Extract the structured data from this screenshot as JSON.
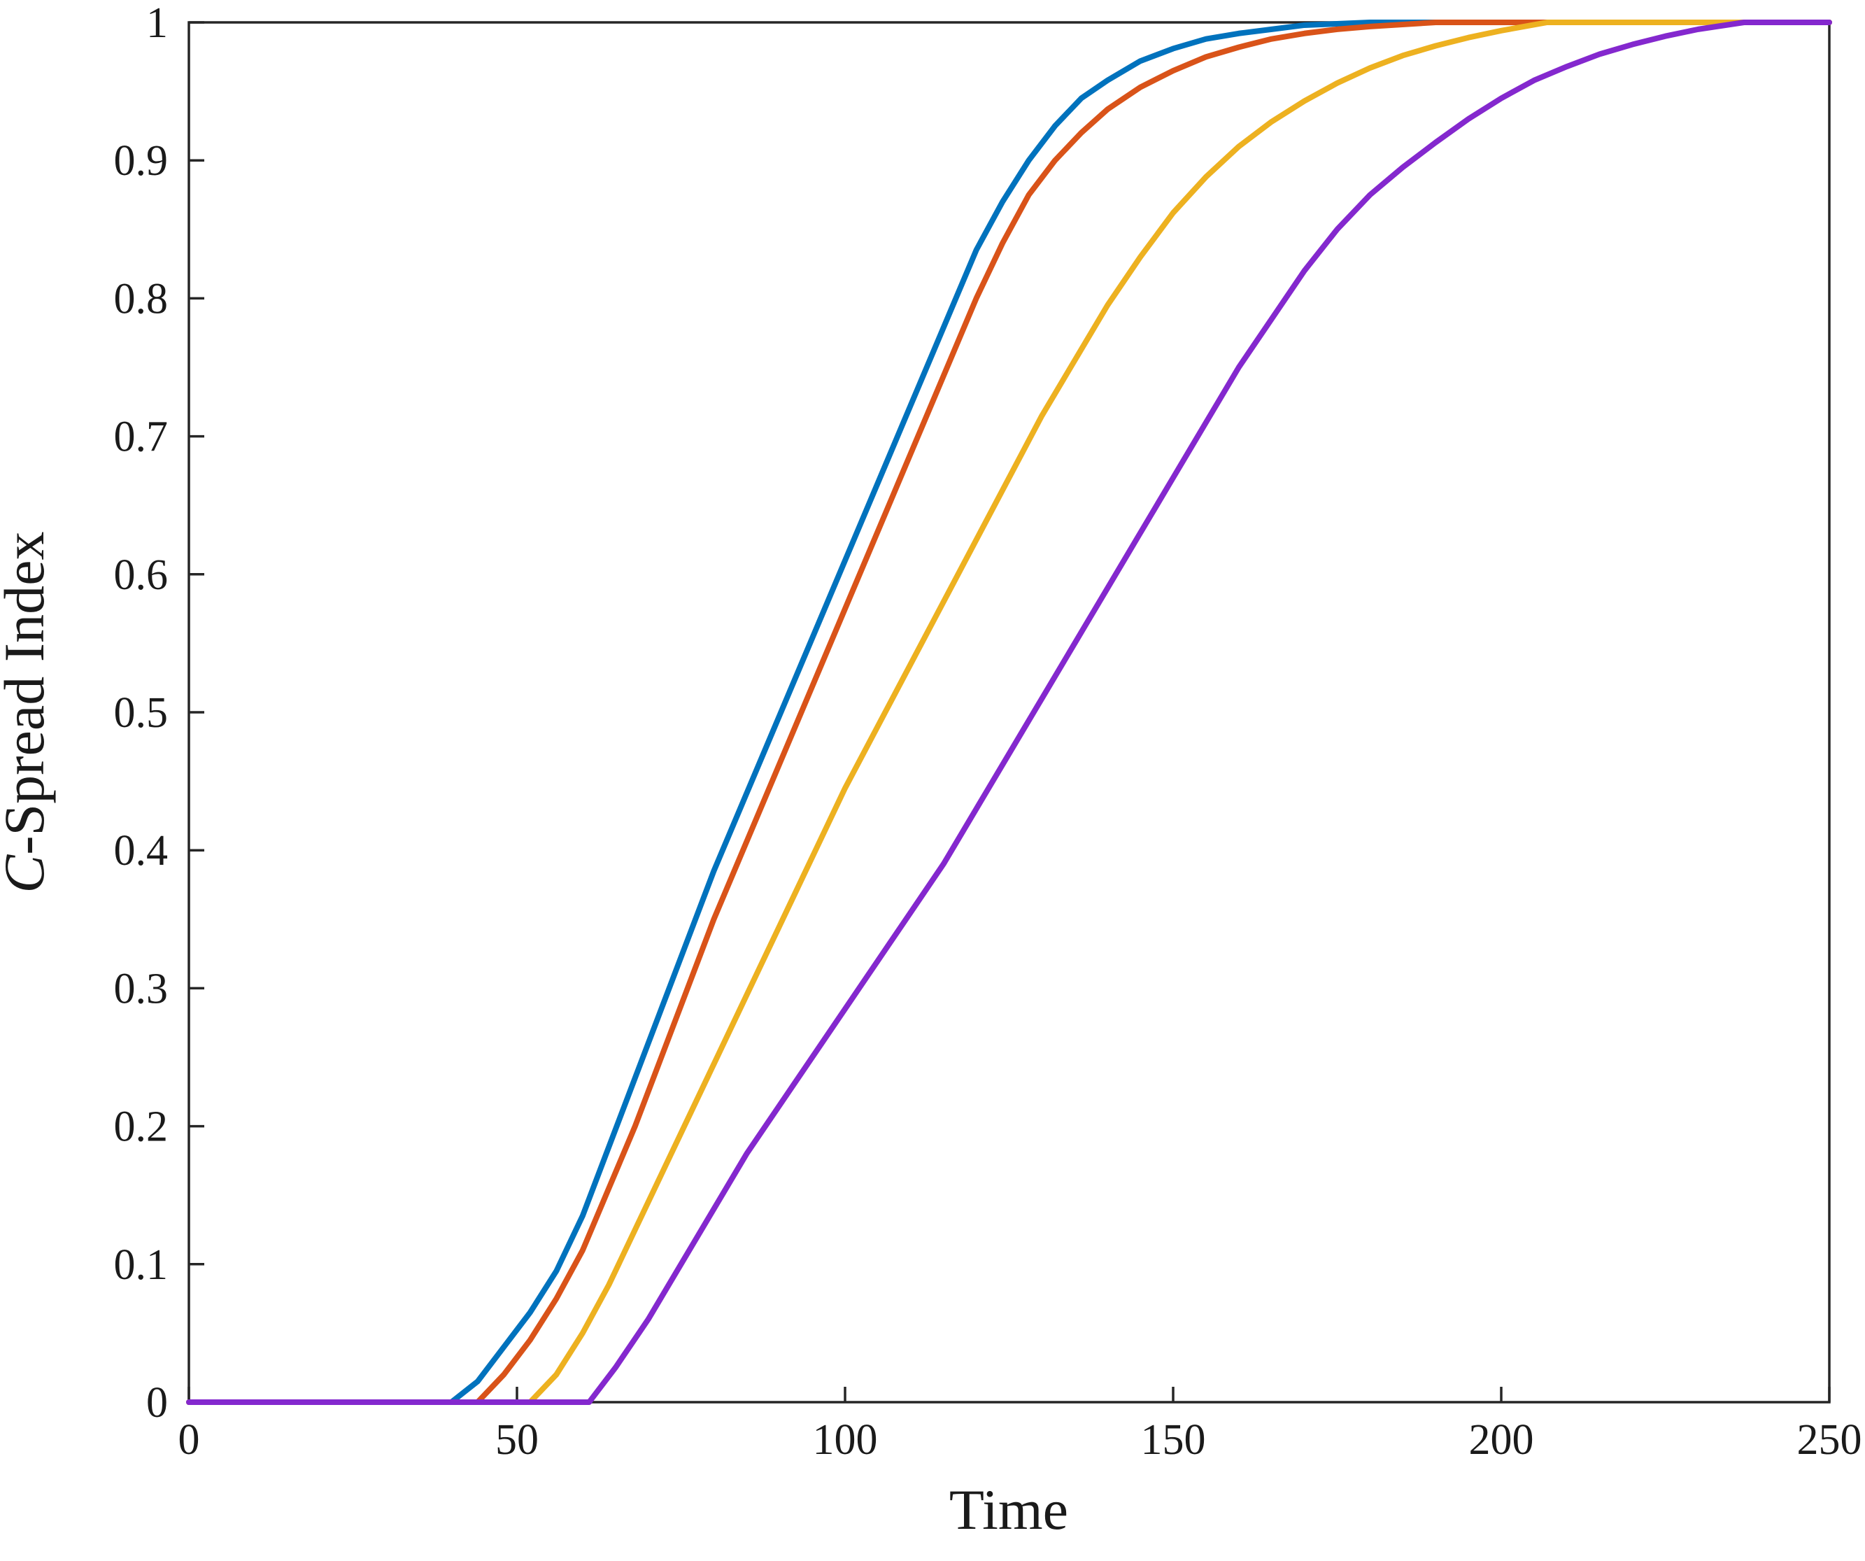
{
  "figure": {
    "background": "#ffffff"
  },
  "chart_data": {
    "type": "line",
    "title": "",
    "xlabel": "Time",
    "ylabel": "C-Spread Index",
    "ylabel_italic": "C",
    "ylabel_rest": "-Spread Index",
    "xlim": [
      0,
      250
    ],
    "ylim": [
      0,
      1
    ],
    "xticks": [
      0,
      50,
      100,
      150,
      200,
      250
    ],
    "yticks": [
      0,
      0.1,
      0.2,
      0.3,
      0.4,
      0.5,
      0.6,
      0.7,
      0.8,
      0.9,
      1
    ],
    "grid": false,
    "legend": "none",
    "axis_color": "#262626",
    "line_width": 8,
    "series": [
      {
        "name": "curve-1-blue",
        "color": "#0072BD",
        "x": [
          0,
          40,
          44,
          48,
          52,
          56,
          60,
          64,
          68,
          72,
          76,
          80,
          84,
          88,
          92,
          96,
          100,
          104,
          108,
          112,
          116,
          120,
          124,
          128,
          132,
          136,
          140,
          145,
          150,
          155,
          160,
          165,
          170,
          180,
          250
        ],
        "y": [
          0,
          0,
          0.015,
          0.04,
          0.065,
          0.095,
          0.135,
          0.185,
          0.235,
          0.285,
          0.335,
          0.385,
          0.43,
          0.475,
          0.52,
          0.565,
          0.61,
          0.655,
          0.7,
          0.745,
          0.79,
          0.835,
          0.87,
          0.9,
          0.925,
          0.945,
          0.958,
          0.972,
          0.981,
          0.988,
          0.992,
          0.995,
          0.998,
          1,
          1
        ]
      },
      {
        "name": "curve-2-orange",
        "color": "#D95319",
        "x": [
          0,
          44,
          48,
          52,
          56,
          60,
          64,
          68,
          72,
          76,
          80,
          84,
          88,
          92,
          96,
          100,
          104,
          108,
          112,
          116,
          120,
          124,
          128,
          132,
          136,
          140,
          145,
          150,
          155,
          160,
          165,
          170,
          175,
          180,
          190,
          250
        ],
        "y": [
          0,
          0,
          0.02,
          0.045,
          0.075,
          0.11,
          0.155,
          0.2,
          0.25,
          0.3,
          0.35,
          0.395,
          0.44,
          0.485,
          0.53,
          0.575,
          0.62,
          0.665,
          0.71,
          0.755,
          0.8,
          0.84,
          0.875,
          0.9,
          0.92,
          0.937,
          0.953,
          0.965,
          0.975,
          0.982,
          0.988,
          0.992,
          0.995,
          0.997,
          1,
          1
        ]
      },
      {
        "name": "curve-3-yellow",
        "color": "#EDB120",
        "x": [
          0,
          52,
          56,
          60,
          64,
          68,
          72,
          76,
          80,
          85,
          90,
          95,
          100,
          105,
          110,
          115,
          120,
          125,
          130,
          135,
          140,
          145,
          150,
          155,
          160,
          165,
          170,
          175,
          180,
          185,
          190,
          195,
          200,
          207,
          250
        ],
        "y": [
          0,
          0,
          0.02,
          0.05,
          0.085,
          0.125,
          0.165,
          0.205,
          0.245,
          0.295,
          0.345,
          0.395,
          0.445,
          0.49,
          0.535,
          0.58,
          0.625,
          0.67,
          0.715,
          0.755,
          0.795,
          0.83,
          0.862,
          0.888,
          0.91,
          0.928,
          0.943,
          0.956,
          0.967,
          0.976,
          0.983,
          0.989,
          0.994,
          1,
          1
        ]
      },
      {
        "name": "curve-4-purple",
        "color": "#8428CE",
        "x": [
          0,
          61,
          65,
          70,
          75,
          80,
          85,
          90,
          95,
          100,
          105,
          110,
          115,
          120,
          125,
          130,
          135,
          140,
          145,
          150,
          155,
          160,
          165,
          170,
          175,
          180,
          185,
          190,
          195,
          200,
          205,
          210,
          215,
          220,
          225,
          230,
          237,
          250
        ],
        "y": [
          0,
          0,
          0.025,
          0.06,
          0.1,
          0.14,
          0.18,
          0.215,
          0.25,
          0.285,
          0.32,
          0.355,
          0.39,
          0.43,
          0.47,
          0.51,
          0.55,
          0.59,
          0.63,
          0.67,
          0.71,
          0.75,
          0.785,
          0.82,
          0.85,
          0.875,
          0.895,
          0.913,
          0.93,
          0.945,
          0.958,
          0.968,
          0.977,
          0.984,
          0.99,
          0.995,
          1,
          1
        ]
      }
    ]
  }
}
